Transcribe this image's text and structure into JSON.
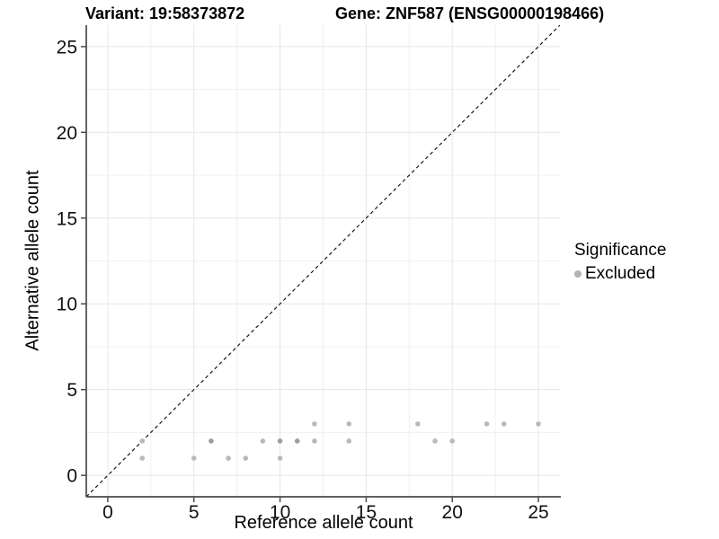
{
  "chart_data": {
    "type": "scatter",
    "title_left": "Variant: 19:58373872",
    "title_right": "Gene: ZNF587 (ENSG00000198466)",
    "xlabel": "Reference allele count",
    "ylabel": "Alternative allele count",
    "xlim": [
      -1.25,
      26.25
    ],
    "ylim": [
      -1.25,
      26.25
    ],
    "x_ticks": [
      0,
      5,
      10,
      15,
      20,
      25
    ],
    "y_ticks": [
      0,
      5,
      10,
      15,
      20,
      25
    ],
    "x_minor_gridlines": [
      2.5,
      7.5,
      12.5,
      17.5,
      22.5
    ],
    "y_minor_gridlines": [
      2.5,
      7.5,
      12.5,
      17.5,
      22.5
    ],
    "grid": true,
    "legend_position": "right",
    "reference_line": {
      "name": "identity-line",
      "equation": "y = x",
      "style": "dashed"
    },
    "legend": {
      "title": "Significance",
      "items": [
        {
          "label": "Excluded",
          "color": "#b3b3b3"
        }
      ]
    },
    "series": [
      {
        "name": "Excluded",
        "points": [
          {
            "x": 2,
            "y": 1,
            "overlap": false
          },
          {
            "x": 2,
            "y": 2,
            "overlap": false
          },
          {
            "x": 5,
            "y": 1,
            "overlap": false
          },
          {
            "x": 6,
            "y": 2,
            "overlap": true
          },
          {
            "x": 7,
            "y": 1,
            "overlap": false
          },
          {
            "x": 8,
            "y": 1,
            "overlap": false
          },
          {
            "x": 9,
            "y": 2,
            "overlap": false
          },
          {
            "x": 10,
            "y": 1,
            "overlap": false
          },
          {
            "x": 10,
            "y": 2,
            "overlap": true
          },
          {
            "x": 11,
            "y": 2,
            "overlap": true
          },
          {
            "x": 12,
            "y": 2,
            "overlap": false
          },
          {
            "x": 12,
            "y": 3,
            "overlap": false
          },
          {
            "x": 14,
            "y": 2,
            "overlap": false
          },
          {
            "x": 14,
            "y": 3,
            "overlap": false
          },
          {
            "x": 18,
            "y": 3,
            "overlap": false
          },
          {
            "x": 19,
            "y": 2,
            "overlap": false
          },
          {
            "x": 20,
            "y": 2,
            "overlap": false
          },
          {
            "x": 22,
            "y": 3,
            "overlap": false
          },
          {
            "x": 23,
            "y": 3,
            "overlap": false
          },
          {
            "x": 25,
            "y": 3,
            "overlap": false
          }
        ]
      }
    ]
  },
  "colors": {
    "point_light": "#b9b9b9",
    "point_dark": "#9d9d9d",
    "legend_key": "#b3b3b3",
    "grid_major": "#e6e6e6",
    "grid_minor": "#f0f0f0",
    "axis_line": "#4a4a4a",
    "tick_label": "#111111",
    "reference_line": "#1a1a1a",
    "background": "#ffffff"
  }
}
